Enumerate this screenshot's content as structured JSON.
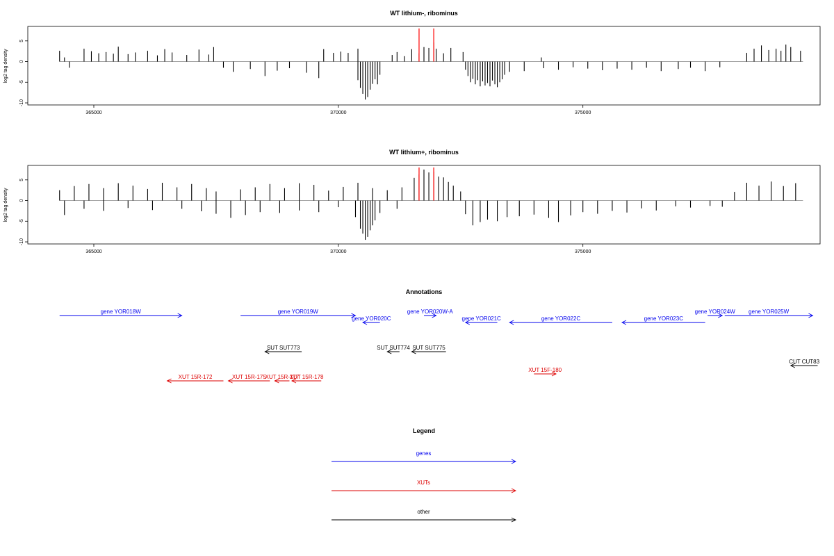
{
  "chart_data": [
    {
      "type": "bar",
      "title": "WT lithium-, ribominus",
      "ylabel": "log2 tag density",
      "x_range": [
        364300,
        379500
      ],
      "xlim": [
        363650,
        379850
      ],
      "ylim": [
        -10.5,
        8.5
      ],
      "yticks": [
        5,
        0,
        -5,
        -10
      ],
      "xticks": [
        365000,
        370000,
        375000
      ],
      "grid": false,
      "series": [
        {
          "values_plus": [
            [
              364300,
              2.6
            ],
            [
              364400,
              1.0
            ],
            [
              364800,
              3.1
            ],
            [
              364950,
              2.5
            ],
            [
              365100,
              2.0
            ],
            [
              365250,
              2.3
            ],
            [
              365400,
              1.9
            ],
            [
              365500,
              3.6
            ],
            [
              365700,
              1.8
            ],
            [
              365850,
              2.2
            ],
            [
              366100,
              2.6
            ],
            [
              366300,
              1.5
            ],
            [
              366450,
              3.0
            ],
            [
              366600,
              2.2
            ],
            [
              366900,
              1.6
            ],
            [
              367150,
              2.9
            ],
            [
              367350,
              1.7
            ],
            [
              367450,
              3.5
            ],
            [
              369700,
              3.0
            ],
            [
              369900,
              2.1
            ],
            [
              370050,
              2.4
            ],
            [
              370200,
              2.1
            ],
            [
              370400,
              3.1
            ],
            [
              371100,
              1.6
            ],
            [
              371200,
              2.3
            ],
            [
              371350,
              1.3
            ],
            [
              371500,
              3.0
            ],
            [
              371650,
              2.0
            ],
            [
              371750,
              3.5
            ],
            [
              371850,
              3.3
            ],
            [
              371950,
              4.6
            ],
            [
              372000,
              3.1
            ],
            [
              372150,
              2.0
            ],
            [
              372300,
              3.3
            ],
            [
              372550,
              2.3
            ],
            [
              374150,
              1.0
            ],
            [
              378350,
              2.1
            ],
            [
              378500,
              3.1
            ],
            [
              378650,
              3.9
            ],
            [
              378800,
              2.8
            ],
            [
              378950,
              3.1
            ],
            [
              379050,
              2.6
            ],
            [
              379150,
              4.1
            ],
            [
              379250,
              3.5
            ],
            [
              379450,
              2.6
            ]
          ],
          "values_minus": [
            [
              364500,
              -1.5
            ],
            [
              367650,
              -1.5
            ],
            [
              367850,
              -2.5
            ],
            [
              368200,
              -1.8
            ],
            [
              368500,
              -3.5
            ],
            [
              368750,
              -2.2
            ],
            [
              369000,
              -1.6
            ],
            [
              369350,
              -2.7
            ],
            [
              369600,
              -4.0
            ],
            [
              370400,
              -4.5
            ],
            [
              370450,
              -6.4
            ],
            [
              370500,
              -7.8
            ],
            [
              370550,
              -9.2
            ],
            [
              370600,
              -8.6
            ],
            [
              370650,
              -6.8
            ],
            [
              370700,
              -5.4
            ],
            [
              370750,
              -4.3
            ],
            [
              370800,
              -5.5
            ],
            [
              370850,
              -3.2
            ],
            [
              372600,
              -2.0
            ],
            [
              372650,
              -3.5
            ],
            [
              372700,
              -5.0
            ],
            [
              372750,
              -4.2
            ],
            [
              372800,
              -5.5
            ],
            [
              372850,
              -4.5
            ],
            [
              372900,
              -6.0
            ],
            [
              372950,
              -4.8
            ],
            [
              373000,
              -5.8
            ],
            [
              373050,
              -5.2
            ],
            [
              373100,
              -6.0
            ],
            [
              373150,
              -4.6
            ],
            [
              373200,
              -5.5
            ],
            [
              373250,
              -6.2
            ],
            [
              373300,
              -5.0
            ],
            [
              373350,
              -4.3
            ],
            [
              373400,
              -3.2
            ],
            [
              373500,
              -2.5
            ],
            [
              373800,
              -2.3
            ],
            [
              374200,
              -1.6
            ],
            [
              374500,
              -2.0
            ],
            [
              374800,
              -1.4
            ],
            [
              375100,
              -1.7
            ],
            [
              375400,
              -2.1
            ],
            [
              375700,
              -1.7
            ],
            [
              376000,
              -2.0
            ],
            [
              376300,
              -1.5
            ],
            [
              376600,
              -2.3
            ],
            [
              376950,
              -1.8
            ],
            [
              377200,
              -1.5
            ],
            [
              377500,
              -2.3
            ],
            [
              377800,
              -1.4
            ]
          ],
          "highlight_x": [
            371650,
            371950
          ]
        }
      ]
    },
    {
      "type": "bar",
      "title": "WT lithium+, ribominus",
      "ylabel": "log2 tag density",
      "x_range": [
        364300,
        379500
      ],
      "xlim": [
        363650,
        379850
      ],
      "ylim": [
        -10.5,
        8.5
      ],
      "yticks": [
        5,
        0,
        -5,
        -10
      ],
      "xticks": [
        365000,
        370000,
        375000
      ],
      "grid": false,
      "series": [
        {
          "values_plus": [
            [
              364300,
              2.5
            ],
            [
              364600,
              3.5
            ],
            [
              364900,
              4.0
            ],
            [
              365200,
              3.0
            ],
            [
              365500,
              4.2
            ],
            [
              365800,
              3.6
            ],
            [
              366100,
              2.8
            ],
            [
              366400,
              4.3
            ],
            [
              366700,
              3.2
            ],
            [
              367000,
              4.0
            ],
            [
              367300,
              3.0
            ],
            [
              367500,
              2.2
            ],
            [
              368000,
              2.7
            ],
            [
              368300,
              3.2
            ],
            [
              368600,
              4.0
            ],
            [
              368900,
              3.0
            ],
            [
              369200,
              4.2
            ],
            [
              369500,
              3.8
            ],
            [
              369800,
              2.4
            ],
            [
              370100,
              3.3
            ],
            [
              370400,
              4.3
            ],
            [
              370700,
              3.0
            ],
            [
              371000,
              2.5
            ],
            [
              371300,
              3.2
            ],
            [
              371550,
              5.5
            ],
            [
              371650,
              6.3
            ],
            [
              371750,
              7.5
            ],
            [
              371850,
              6.8
            ],
            [
              371950,
              7.0
            ],
            [
              372050,
              5.8
            ],
            [
              372150,
              5.6
            ],
            [
              372250,
              4.5
            ],
            [
              372350,
              3.6
            ],
            [
              372500,
              2.2
            ],
            [
              378100,
              2.1
            ],
            [
              378350,
              4.3
            ],
            [
              378600,
              3.6
            ],
            [
              378850,
              4.6
            ],
            [
              379100,
              3.5
            ],
            [
              379350,
              4.2
            ]
          ],
          "values_minus": [
            [
              364400,
              -3.5
            ],
            [
              364800,
              -2.0
            ],
            [
              365200,
              -2.5
            ],
            [
              365700,
              -1.8
            ],
            [
              366200,
              -2.3
            ],
            [
              366800,
              -2.0
            ],
            [
              367200,
              -2.6
            ],
            [
              367500,
              -3.2
            ],
            [
              367800,
              -4.2
            ],
            [
              368100,
              -3.5
            ],
            [
              368400,
              -2.8
            ],
            [
              368800,
              -3.0
            ],
            [
              369200,
              -2.4
            ],
            [
              369600,
              -2.8
            ],
            [
              370000,
              -1.6
            ],
            [
              370350,
              -4.0
            ],
            [
              370450,
              -6.8
            ],
            [
              370500,
              -8.0
            ],
            [
              370550,
              -9.5
            ],
            [
              370600,
              -8.8
            ],
            [
              370650,
              -7.2
            ],
            [
              370700,
              -6.0
            ],
            [
              370750,
              -4.8
            ],
            [
              370850,
              -3.0
            ],
            [
              371200,
              -2.0
            ],
            [
              372600,
              -3.3
            ],
            [
              372750,
              -6.0
            ],
            [
              372900,
              -5.2
            ],
            [
              373050,
              -4.6
            ],
            [
              373250,
              -5.0
            ],
            [
              373450,
              -4.0
            ],
            [
              373700,
              -3.8
            ],
            [
              374000,
              -3.4
            ],
            [
              374300,
              -4.2
            ],
            [
              374500,
              -5.2
            ],
            [
              374750,
              -3.6
            ],
            [
              375000,
              -2.8
            ],
            [
              375300,
              -3.2
            ],
            [
              375600,
              -2.5
            ],
            [
              375900,
              -2.9
            ],
            [
              376200,
              -1.9
            ],
            [
              376500,
              -2.4
            ],
            [
              376900,
              -1.4
            ],
            [
              377200,
              -1.7
            ],
            [
              377600,
              -1.3
            ],
            [
              377850,
              -1.5
            ]
          ],
          "highlight_x": [
            371650,
            371950
          ]
        }
      ]
    }
  ],
  "annotations": {
    "title": "Annotations",
    "items": [
      {
        "label": "gene YOR018W",
        "start": 364300,
        "end": 366800,
        "row": 0,
        "kind": "gene",
        "dir": 1
      },
      {
        "label": "gene YOR019W",
        "start": 368000,
        "end": 370350,
        "row": 0,
        "kind": "gene",
        "dir": 1
      },
      {
        "label": "gene YOR020C",
        "start": 370500,
        "end": 370850,
        "row": 1,
        "kind": "gene",
        "dir": -1
      },
      {
        "label": "gene YOR020W-A",
        "start": 371750,
        "end": 372000,
        "row": 0,
        "kind": "gene",
        "dir": 1
      },
      {
        "label": "gene YOR021C",
        "start": 372600,
        "end": 373250,
        "row": 1,
        "kind": "gene",
        "dir": -1
      },
      {
        "label": "gene YOR022C",
        "start": 373500,
        "end": 375600,
        "row": 1,
        "kind": "gene",
        "dir": -1
      },
      {
        "label": "gene YOR023C",
        "start": 375800,
        "end": 377500,
        "row": 1,
        "kind": "gene",
        "dir": -1
      },
      {
        "label": "gene YOR024W",
        "start": 377550,
        "end": 377850,
        "row": 0,
        "kind": "gene",
        "dir": 1
      },
      {
        "label": "gene YOR025W",
        "start": 377900,
        "end": 379700,
        "row": 0,
        "kind": "gene",
        "dir": 1
      },
      {
        "label": "SUT SUT773",
        "start": 368500,
        "end": 369250,
        "row": 2,
        "kind": "other",
        "dir": -1
      },
      {
        "label": "SUT SUT774",
        "start": 371000,
        "end": 371250,
        "row": 2,
        "kind": "other",
        "dir": -1
      },
      {
        "label": "SUT SUT775",
        "start": 371500,
        "end": 372200,
        "row": 2,
        "kind": "other",
        "dir": -1
      },
      {
        "label": "CUT CUT83",
        "start": 379250,
        "end": 379800,
        "row": 3,
        "kind": "other",
        "dir": -1
      },
      {
        "label": "XUT 15F-180",
        "start": 374000,
        "end": 374450,
        "row": 4,
        "kind": "xut",
        "dir": 1
      },
      {
        "label": "XUT 15R-172",
        "start": 366500,
        "end": 367650,
        "row": 5,
        "kind": "xut",
        "dir": -1
      },
      {
        "label": "XUT 15R-175",
        "start": 367750,
        "end": 368600,
        "row": 5,
        "kind": "xut",
        "dir": -1
      },
      {
        "label": "XUT 15R-177",
        "start": 368700,
        "end": 369000,
        "row": 5,
        "kind": "xut",
        "dir": -1
      },
      {
        "label": "XUT 15R-178",
        "start": 369050,
        "end": 369650,
        "row": 5,
        "kind": "xut",
        "dir": -1
      }
    ]
  },
  "legend": {
    "title": "Legend",
    "items": [
      {
        "label": "genes",
        "kind": "gene"
      },
      {
        "label": "XUTs",
        "kind": "xut"
      },
      {
        "label": "other",
        "kind": "other"
      }
    ]
  },
  "colors": {
    "gene": "#0000ee",
    "xut": "#dd0000",
    "other": "#000000",
    "highlight": "#ff0000",
    "baseline": "#999999",
    "bar": "#000000"
  }
}
